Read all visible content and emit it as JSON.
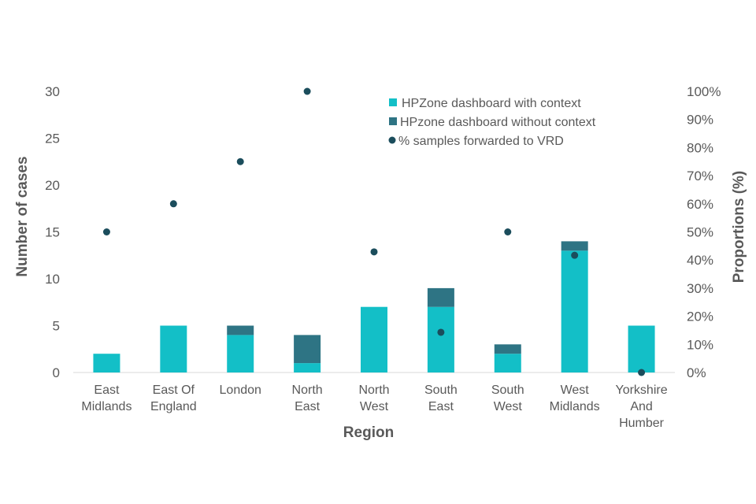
{
  "chart_data": {
    "type": "bar",
    "stacked": true,
    "categories": [
      [
        "East",
        "Midlands"
      ],
      [
        "East Of",
        "England"
      ],
      [
        "London"
      ],
      [
        "North",
        "East"
      ],
      [
        "North",
        "West"
      ],
      [
        "South",
        "East"
      ],
      [
        "South",
        "West"
      ],
      [
        "West",
        "Midlands"
      ],
      [
        "Yorkshire",
        "And",
        "Humber"
      ]
    ],
    "series": [
      {
        "name": "HPZone dashboard with context",
        "type": "bar",
        "axis": "left",
        "color": "#13BFC7",
        "values": [
          2,
          5,
          4,
          1,
          7,
          7,
          2,
          13,
          5
        ]
      },
      {
        "name": "HPzone dashboard without context",
        "type": "bar",
        "axis": "left",
        "color": "#2E7484",
        "values": [
          0,
          0,
          1,
          3,
          0,
          2,
          1,
          1,
          0
        ]
      },
      {
        "name": "% samples forwarded to VRD",
        "type": "scatter",
        "axis": "right",
        "color": "#1B4D5C",
        "values": [
          50,
          60,
          75,
          100,
          42.9,
          14.3,
          50,
          41.7,
          0
        ]
      }
    ],
    "xlabel": "Region",
    "ylabel": "Number of cases",
    "y2label": "Proportions (%)",
    "ylim": [
      0,
      30
    ],
    "y2lim": [
      0,
      100
    ],
    "yticks": [
      "0",
      "5",
      "10",
      "15",
      "20",
      "25",
      "30"
    ],
    "y2ticks": [
      "0%",
      "10%",
      "20%",
      "30%",
      "40%",
      "50%",
      "60%",
      "70%",
      "80%",
      "90%",
      "100%"
    ],
    "legend_position": "top-right"
  }
}
